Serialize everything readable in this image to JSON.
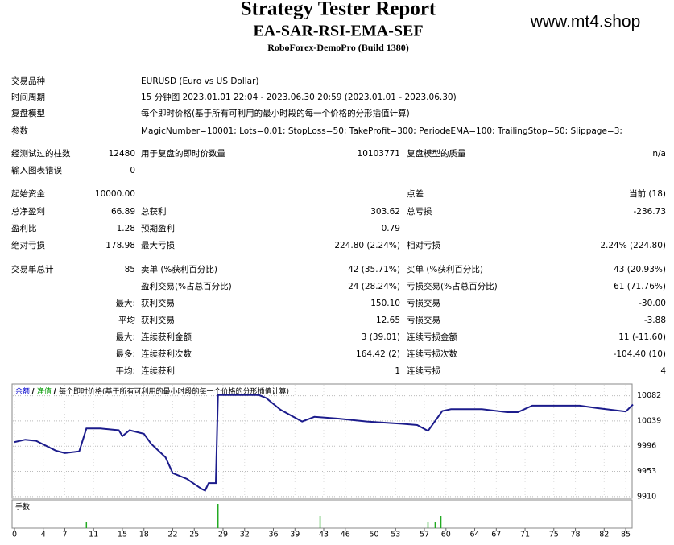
{
  "header": {
    "title": "Strategy Tester Report",
    "subtitle": "EA-SAR-RSI-EMA-SEF",
    "server": "RoboForex-DemoPro (Build 1380)",
    "watermark": "www.mt4.shop"
  },
  "info": [
    {
      "label": "交易品种",
      "value": "EURUSD (Euro vs US Dollar)"
    },
    {
      "label": "时间周期",
      "value": "15 分钟图 2023.01.01 22:04 - 2023.06.30 20:59 (2023.01.01 - 2023.06.30)"
    },
    {
      "label": "复盘模型",
      "value": "每个即时价格(基于所有可利用的最小时段的每一个价格的分形插值计算)"
    },
    {
      "label": "参数",
      "value": "MagicNumber=10001; Lots=0.01; StopLoss=50; TakeProfit=300; PeriodeEMA=100; TrailingStop=50; Slippage=3;"
    }
  ],
  "stats": [
    {
      "l1": "经测试过的柱数",
      "v1": "12480",
      "l2": "用于复盘的即时价数量",
      "v2": "10103771",
      "l3": "复盘模型的质量",
      "v3": "n/a"
    },
    {
      "l1": "输入图表错误",
      "v1": "0"
    },
    {
      "l1": "起始资金",
      "v1": "10000.00",
      "l3": "点差",
      "v3": "当前 (18)"
    },
    {
      "l1": "总净盈利",
      "v1": "66.89",
      "l2": "总获利",
      "v2": "303.62",
      "l3": "总亏损",
      "v3": "-236.73"
    },
    {
      "l1": "盈利比",
      "v1": "1.28",
      "l2": "预期盈利",
      "v2": "0.79"
    },
    {
      "l1": "绝对亏损",
      "v1": "178.98",
      "l2": "最大亏损",
      "v2": "224.80 (2.24%)",
      "l3": "相对亏损",
      "v3": "2.24% (224.80)"
    },
    {
      "l1": "交易单总计",
      "v1": "85",
      "l2": "卖单 (%获利百分比)",
      "v2": "42 (35.71%)",
      "l3": "买单 (%获利百分比)",
      "v3": "43 (20.93%)"
    },
    {
      "l2": "盈利交易(%占总百分比)",
      "v2": "24 (28.24%)",
      "l3": "亏损交易(%占总百分比)",
      "v3": "61 (71.76%)"
    },
    {
      "v1": "最大:",
      "l2": "获利交易",
      "v2": "150.10",
      "l3": "亏损交易",
      "v3": "-30.00"
    },
    {
      "v1": "平均",
      "l2": "获利交易",
      "v2": "12.65",
      "l3": "亏损交易",
      "v3": "-3.88"
    },
    {
      "v1": "最大:",
      "l2": "连续获利金额",
      "v2": "3 (39.01)",
      "l3": "连续亏损金额",
      "v3": "11 (-11.60)"
    },
    {
      "v1": "最多:",
      "l2": "连续获利次数",
      "v2": "164.42 (2)",
      "l3": "连续亏损次数",
      "v3": "-104.40 (10)"
    },
    {
      "v1": "平均:",
      "l2": "连续获利",
      "v2": "1",
      "l3": "连续亏损",
      "v3": "4"
    }
  ],
  "chart_data": {
    "type": "line",
    "legend": [
      {
        "text": "余额",
        "color": "#0000cc"
      },
      {
        "text": "净值",
        "color": "#009900"
      },
      {
        "text": "每个即时价格(基于所有可利用的最小时段的每一个价格的分形插值计算)",
        "color": "#000000"
      }
    ],
    "series": [
      {
        "color": "#1c1c8c",
        "x": [
          0,
          1.5,
          3,
          5.8,
          7,
          9,
          10,
          12,
          14.5,
          15,
          16,
          18,
          19,
          21,
          22,
          24,
          26,
          26.5,
          27,
          28,
          28.3,
          29,
          34,
          35,
          37,
          40,
          41.7,
          45,
          49,
          54,
          56,
          57.5,
          59.5,
          60.7,
          65,
          68.5,
          70,
          72,
          78.6,
          81,
          85,
          86
        ],
        "values": [
          10003,
          10007,
          10005,
          9988,
          9984,
          9987,
          10026,
          10026,
          10023,
          10013,
          10023,
          10017,
          10000,
          9977,
          9950,
          9940,
          9923,
          9920,
          9933,
          9933,
          10083,
          10083,
          10083,
          10078,
          10058,
          10038,
          10046,
          10043,
          10038,
          10034,
          10032,
          10022,
          10056,
          10059,
          10059,
          10054,
          10054,
          10065,
          10065,
          10061,
          10055,
          10067
        ]
      }
    ],
    "xlim": [
      0,
      86
    ],
    "xticks": [
      0,
      4,
      7,
      11,
      15,
      18,
      22,
      25,
      29,
      32,
      36,
      39,
      43,
      46,
      50,
      53,
      57,
      60,
      64,
      67,
      71,
      75,
      78,
      82,
      85
    ],
    "ylim": [
      9907,
      10102
    ],
    "yticks": [
      9910,
      9953,
      9996,
      10039,
      10082
    ],
    "grid": true,
    "lots": {
      "label": "手数",
      "color": "#22aa22",
      "x": [
        10,
        28.3,
        42.5,
        57.5,
        58.5,
        59.3
      ],
      "values": [
        0.01,
        0.04,
        0.02,
        0.01,
        0.01,
        0.02
      ],
      "ylim": [
        0,
        0.04
      ]
    }
  }
}
